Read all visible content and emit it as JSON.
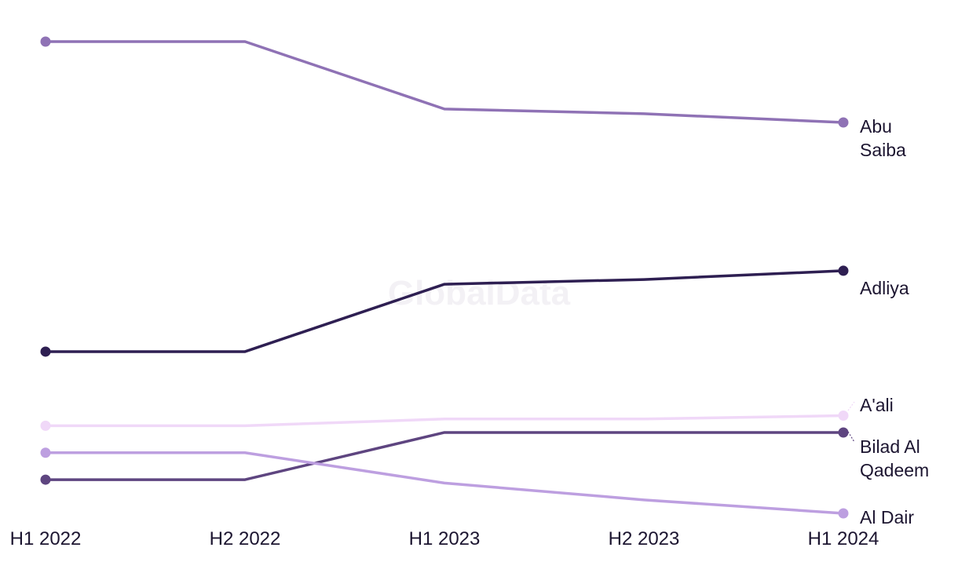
{
  "watermark": "GlobalData",
  "chart_data": {
    "type": "line",
    "x": [
      "H1 2022",
      "H2 2022",
      "H1 2023",
      "H2 2023",
      "H1 2024"
    ],
    "y_scale": "rank",
    "grid": false,
    "legend": "direct labels at line ends (right)",
    "series": [
      {
        "name": "Abu Saiba",
        "label_lines": [
          "Abu",
          "Saiba"
        ],
        "color": "#8f72b5",
        "values": [
          1.0,
          1.0,
          2.0,
          2.07,
          2.2
        ]
      },
      {
        "name": "Adliya",
        "label_lines": [
          "Adliya"
        ],
        "color": "#2e1f52",
        "values": [
          5.6,
          5.6,
          4.6,
          4.53,
          4.4
        ]
      },
      {
        "name": "A'ali",
        "label_lines": [
          "A'ali"
        ],
        "color": "#f0d8f8",
        "values": [
          6.7,
          6.7,
          6.6,
          6.6,
          6.55
        ]
      },
      {
        "name": "Bilad Al Qadeem",
        "label_lines": [
          "Bilad Al",
          "Qadeem"
        ],
        "color": "#5e4580",
        "values": [
          7.5,
          7.5,
          6.8,
          6.8,
          6.8
        ]
      },
      {
        "name": "Al Dair",
        "label_lines": [
          "Al Dair"
        ],
        "color": "#bd9fe0",
        "values": [
          7.1,
          7.1,
          7.55,
          7.8,
          8.0
        ]
      }
    ]
  }
}
